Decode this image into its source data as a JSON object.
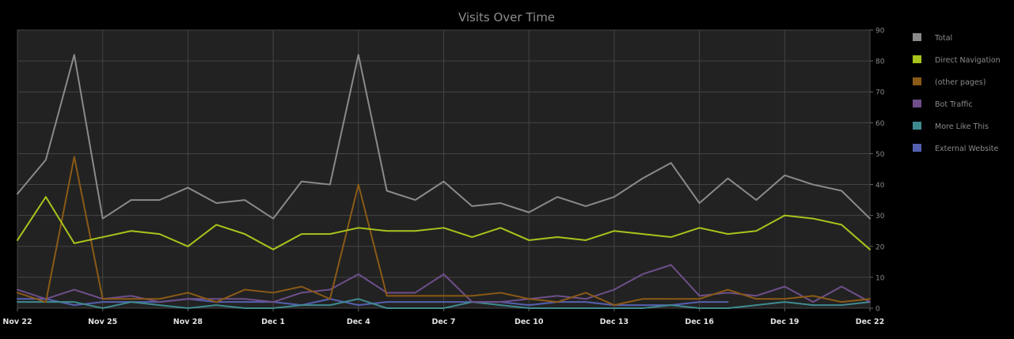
{
  "chart_data": {
    "type": "line",
    "title": "Visits Over Time",
    "xlabel": "",
    "ylabel": "",
    "ylim": [
      0,
      90
    ],
    "grid": true,
    "legend_position": "right",
    "y_axis_side": "right",
    "y_ticks": [
      "0",
      "10",
      "20",
      "30",
      "40",
      "50",
      "60",
      "70",
      "80",
      "90"
    ],
    "x_tick_labels": [
      "Nov 22",
      "Nov 25",
      "Nov 28",
      "Dec 1",
      "Dec 4",
      "Dec 7",
      "Dec 10",
      "Dec 13",
      "Dec 16",
      "Dec 19",
      "Dec 22"
    ],
    "x": [
      "Nov 22",
      "Nov 23",
      "Nov 24",
      "Nov 25",
      "Nov 26",
      "Nov 27",
      "Nov 28",
      "Nov 29",
      "Nov 30",
      "Dec 1",
      "Dec 2",
      "Dec 3",
      "Dec 4",
      "Dec 5",
      "Dec 6",
      "Dec 7",
      "Dec 8",
      "Dec 9",
      "Dec 10",
      "Dec 11",
      "Dec 12",
      "Dec 13",
      "Dec 14",
      "Dec 15",
      "Dec 16",
      "Dec 17",
      "Dec 18",
      "Dec 19",
      "Dec 20",
      "Dec 21",
      "Dec 22"
    ],
    "series": [
      {
        "name": "Total",
        "color": "#8a8a8a",
        "values": [
          37,
          48,
          82,
          29,
          35,
          35,
          39,
          34,
          35,
          29,
          41,
          40,
          82,
          38,
          35,
          41,
          33,
          34,
          31,
          36,
          33,
          36,
          42,
          47,
          34,
          42,
          35,
          43,
          40,
          38,
          29
        ]
      },
      {
        "name": "Direct Navigation",
        "color": "#a8c41c",
        "values": [
          22,
          36,
          21,
          23,
          25,
          24,
          20,
          27,
          24,
          19,
          24,
          24,
          26,
          25,
          25,
          26,
          23,
          26,
          22,
          23,
          22,
          25,
          24,
          23,
          26,
          24,
          25,
          30,
          29,
          27,
          19
        ]
      },
      {
        "name": "(other pages)",
        "color": "#8b5a16",
        "values": [
          5,
          2,
          49,
          3,
          3,
          3,
          5,
          2,
          6,
          5,
          7,
          3,
          40,
          4,
          4,
          4,
          4,
          5,
          3,
          2,
          5,
          1,
          3,
          3,
          3,
          6,
          3,
          3,
          4,
          2,
          3
        ]
      },
      {
        "name": "Bot Traffic",
        "color": "#6e4f8a",
        "values": [
          6,
          3,
          6,
          3,
          4,
          2,
          3,
          3,
          3,
          2,
          5,
          6,
          11,
          5,
          5,
          11,
          2,
          2,
          3,
          4,
          3,
          6,
          11,
          14,
          4,
          5,
          4,
          7,
          2,
          7,
          2
        ]
      },
      {
        "name": "More Like This",
        "color": "#3f8a8f",
        "values": [
          2,
          2,
          2,
          0,
          2,
          1,
          0,
          1,
          0,
          0,
          1,
          1,
          3,
          0,
          0,
          0,
          2,
          1,
          0,
          0,
          0,
          0,
          0,
          1,
          0,
          0,
          1,
          2,
          1,
          1,
          2
        ]
      },
      {
        "name": "External Website",
        "color": "#5560b0",
        "values": [
          3,
          3,
          1,
          2,
          2,
          2,
          3,
          2,
          2,
          2,
          1,
          3,
          1,
          2,
          2,
          2,
          2,
          2,
          1,
          2,
          2,
          1,
          1,
          1,
          2,
          2,
          null,
          null,
          null,
          null,
          null
        ]
      }
    ]
  }
}
